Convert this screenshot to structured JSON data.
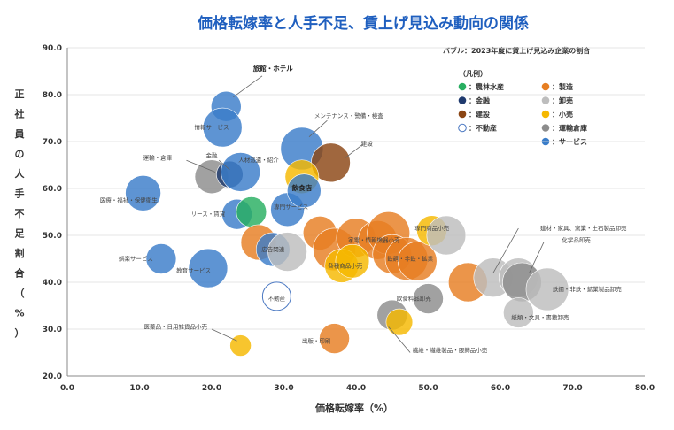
{
  "chart_data": {
    "type": "scatter",
    "title": "価格転嫁率と人手不足、賃上げ見込み動向の関係",
    "note": "バブル：2023年度に賃上げ見込み企業の割合",
    "xlabel": "価格転嫁率（%）",
    "ylabel": "正社員の人手不足割合（%）",
    "xlim": [
      0,
      80
    ],
    "ylim": [
      20,
      90
    ],
    "xticks": [
      "0.0",
      "10.0",
      "20.0",
      "30.0",
      "40.0",
      "50.0",
      "60.0",
      "70.0",
      "80.0"
    ],
    "yticks": [
      "20.0",
      "30.0",
      "40.0",
      "50.0",
      "60.0",
      "70.0",
      "80.0",
      "90.0"
    ],
    "legend_title": "（凡例）",
    "legend_position": "top-right",
    "legend": [
      {
        "label": "：農林水産",
        "color": "#27ae60",
        "hollow": false
      },
      {
        "label": "：製造",
        "color": "#e67e22",
        "hollow": false
      },
      {
        "label": "：金融",
        "color": "#1f3a6e",
        "hollow": false
      },
      {
        "label": "：卸売",
        "color": "#bdbdbd",
        "hollow": false
      },
      {
        "label": "：建設",
        "color": "#8b4513",
        "hollow": false
      },
      {
        "label": "：小売",
        "color": "#f5b800",
        "hollow": false
      },
      {
        "label": "：不動産",
        "color": "#4a78c2",
        "hollow": true
      },
      {
        "label": "：運輸倉庫",
        "color": "#8c8c8c",
        "hollow": false
      },
      {
        "label": "",
        "color": "",
        "hollow": false
      },
      {
        "label": "：サービス",
        "color": "#3a7dc9",
        "hollow": false
      }
    ],
    "colors": {
      "agri": "#27ae60",
      "mfg": "#e67e22",
      "fin": "#1f3a6e",
      "whole": "#bdbdbd",
      "cons": "#8b4513",
      "retail": "#f5b800",
      "realestate": "#4a78c2",
      "transport": "#8c8c8c",
      "service": "#3a7dc9"
    },
    "points": [
      {
        "x": 22.0,
        "y": 77.5,
        "size": 17,
        "cat": "service"
      },
      {
        "x": 21.5,
        "y": 73.0,
        "size": 22,
        "cat": "service"
      },
      {
        "x": 20.0,
        "y": 62.5,
        "size": 19,
        "cat": "transport"
      },
      {
        "x": 22.5,
        "y": 63.0,
        "size": 15,
        "cat": "fin"
      },
      {
        "x": 24.0,
        "y": 63.5,
        "size": 22,
        "cat": "service"
      },
      {
        "x": 10.5,
        "y": 59.0,
        "size": 20,
        "cat": "service"
      },
      {
        "x": 23.5,
        "y": 54.5,
        "size": 17,
        "cat": "service"
      },
      {
        "x": 25.5,
        "y": 55.0,
        "size": 17,
        "cat": "agri"
      },
      {
        "x": 26.5,
        "y": 48.5,
        "size": 20,
        "cat": "mfg"
      },
      {
        "x": 28.5,
        "y": 47.0,
        "size": 19,
        "cat": "service"
      },
      {
        "x": 30.5,
        "y": 46.5,
        "size": 22,
        "cat": "whole"
      },
      {
        "x": 30.5,
        "y": 55.5,
        "size": 19,
        "cat": "service"
      },
      {
        "x": 32.5,
        "y": 68.5,
        "size": 24,
        "cat": "service"
      },
      {
        "x": 36.5,
        "y": 65.5,
        "size": 22,
        "cat": "cons"
      },
      {
        "x": 32.5,
        "y": 62.5,
        "size": 19,
        "cat": "retail"
      },
      {
        "x": 32.8,
        "y": 59.5,
        "size": 19,
        "cat": "service"
      },
      {
        "x": 35.0,
        "y": 50.5,
        "size": 19,
        "cat": "mfg"
      },
      {
        "x": 37.0,
        "y": 47.0,
        "size": 24,
        "cat": "mfg"
      },
      {
        "x": 40.0,
        "y": 49.5,
        "size": 22,
        "cat": "mfg"
      },
      {
        "x": 43.0,
        "y": 49.0,
        "size": 22,
        "cat": "mfg"
      },
      {
        "x": 44.5,
        "y": 50.5,
        "size": 24,
        "cat": "mfg"
      },
      {
        "x": 38.0,
        "y": 43.5,
        "size": 19,
        "cat": "retail"
      },
      {
        "x": 39.5,
        "y": 44.5,
        "size": 19,
        "cat": "retail"
      },
      {
        "x": 45.0,
        "y": 46.0,
        "size": 22,
        "cat": "mfg"
      },
      {
        "x": 47.0,
        "y": 45.0,
        "size": 24,
        "cat": "mfg"
      },
      {
        "x": 48.5,
        "y": 44.5,
        "size": 22,
        "cat": "mfg"
      },
      {
        "x": 50.5,
        "y": 51.0,
        "size": 17,
        "cat": "retail"
      },
      {
        "x": 52.5,
        "y": 50.0,
        "size": 22,
        "cat": "whole"
      },
      {
        "x": 55.5,
        "y": 40.0,
        "size": 22,
        "cat": "mfg"
      },
      {
        "x": 59.0,
        "y": 41.0,
        "size": 22,
        "cat": "whole"
      },
      {
        "x": 62.5,
        "y": 41.0,
        "size": 22,
        "cat": "whole"
      },
      {
        "x": 63.0,
        "y": 40.0,
        "size": 22,
        "cat": "transport"
      },
      {
        "x": 66.5,
        "y": 38.5,
        "size": 24,
        "cat": "whole"
      },
      {
        "x": 62.5,
        "y": 33.5,
        "size": 17,
        "cat": "whole"
      },
      {
        "x": 50.0,
        "y": 36.5,
        "size": 17,
        "cat": "transport"
      },
      {
        "x": 45.0,
        "y": 33.0,
        "size": 17,
        "cat": "transport"
      },
      {
        "x": 46.0,
        "y": 31.5,
        "size": 15,
        "cat": "retail"
      },
      {
        "x": 37.0,
        "y": 28.0,
        "size": 17,
        "cat": "mfg"
      },
      {
        "x": 24.0,
        "y": 26.5,
        "size": 12,
        "cat": "retail"
      },
      {
        "x": 19.5,
        "y": 43.0,
        "size": 22,
        "cat": "service"
      },
      {
        "x": 13.0,
        "y": 45.0,
        "size": 17,
        "cat": "service"
      },
      {
        "x": 29.0,
        "y": 37.0,
        "size": 16,
        "cat": "realestate"
      }
    ],
    "labels": [
      {
        "text": "旅館・ホテル",
        "x": 28.5,
        "y": 85.5,
        "bold": true,
        "line": [
          27.0,
          84.0,
          23.0,
          79.5
        ]
      },
      {
        "text": "メンテナンス・警備・検査",
        "x": 39.0,
        "y": 75.5,
        "line": [
          36.0,
          74.5,
          33.5,
          71.0
        ]
      },
      {
        "text": "情報サービス",
        "x": 20.0,
        "y": 73.0
      },
      {
        "text": "建設",
        "x": 41.5,
        "y": 69.5,
        "line": [
          41.0,
          69.5,
          38.5,
          66.5
        ]
      },
      {
        "text": "運輸・倉庫",
        "x": 12.5,
        "y": 66.5,
        "line": [
          16.5,
          66.0,
          20.5,
          63.5
        ]
      },
      {
        "text": "金融",
        "x": 20.0,
        "y": 67.0,
        "line": [
          21.0,
          66.0,
          22.5,
          64.0
        ]
      },
      {
        "text": "人材派遣・紹介",
        "x": 26.5,
        "y": 66.0
      },
      {
        "text": "飲食店",
        "x": 32.5,
        "y": 60.0,
        "bold": true
      },
      {
        "text": "医療・福祉・保健衛生",
        "x": 8.5,
        "y": 57.5
      },
      {
        "text": "専門サービス",
        "x": 31.0,
        "y": 56.0
      },
      {
        "text": "リース・賃貸",
        "x": 19.5,
        "y": 54.5
      },
      {
        "text": "専門商品小売",
        "x": 50.5,
        "y": 51.5
      },
      {
        "text": "建材・家具、窯業・土石製品卸売",
        "x": 71.5,
        "y": 51.5,
        "line": [
          62.5,
          51.5,
          59.0,
          42.0
        ]
      },
      {
        "text": "家電・情報機器小売",
        "x": 42.5,
        "y": 49.0
      },
      {
        "text": "化学品卸売",
        "x": 70.5,
        "y": 49.0,
        "line": [
          66.0,
          48.5,
          64.0,
          42.0
        ]
      },
      {
        "text": "広告関連",
        "x": 28.5,
        "y": 47.0
      },
      {
        "text": "鉄鋼・非鉄・鉱業",
        "x": 47.5,
        "y": 45.0
      },
      {
        "text": "各種商品小売",
        "x": 38.5,
        "y": 43.5
      },
      {
        "text": "娯楽サービス",
        "x": 9.5,
        "y": 45.0
      },
      {
        "text": "教育サービス",
        "x": 17.5,
        "y": 42.5
      },
      {
        "text": "鉄鋼・非鉄・鉱業製品卸売",
        "x": 72.0,
        "y": 38.5
      },
      {
        "text": "不動産",
        "x": 29.0,
        "y": 36.5
      },
      {
        "text": "飲食料品卸売",
        "x": 48.0,
        "y": 36.5
      },
      {
        "text": "紙類・文具・書籍卸売",
        "x": 65.5,
        "y": 32.5
      },
      {
        "text": "医薬品・日用雑貨品小売",
        "x": 15.0,
        "y": 30.5,
        "line": [
          20.0,
          30.0,
          23.5,
          27.5
        ]
      },
      {
        "text": "出版・印刷",
        "x": 34.5,
        "y": 27.5
      },
      {
        "text": "繊維・繊維製品・服飾品小売",
        "x": 53.0,
        "y": 25.5,
        "line": [
          47.5,
          25.0,
          44.5,
          30.5
        ]
      }
    ]
  }
}
